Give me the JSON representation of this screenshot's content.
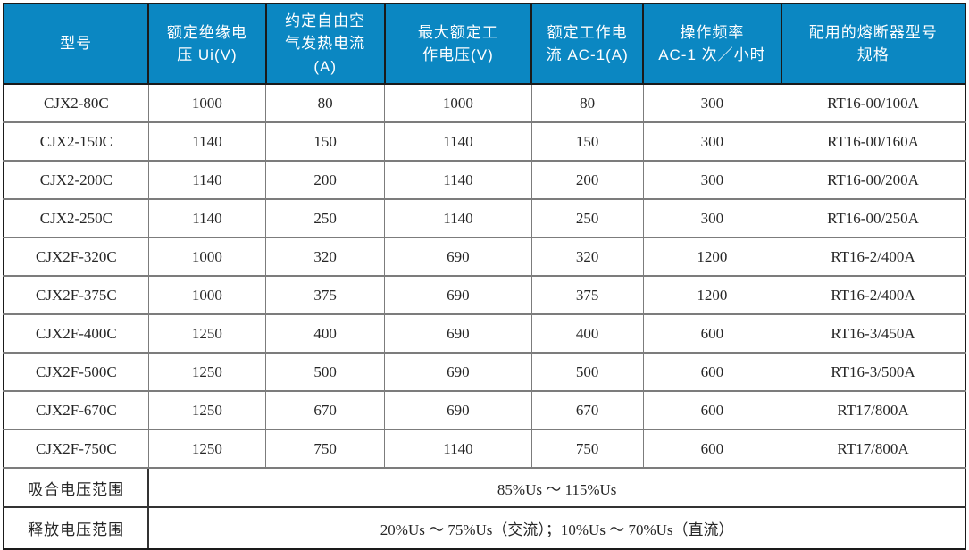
{
  "chart_data": {
    "type": "table",
    "columns": [
      "型号",
      "额定绝缘电压 Ui(V)",
      "约定自由空气发热电流(A)",
      "最大额定工作电压(V)",
      "额定工作电流 AC-1(A)",
      "操作频率 AC-1 次／小时",
      "配用的熔断器型号规格"
    ],
    "rows": [
      [
        "CJX2-80C",
        "1000",
        "80",
        "1000",
        "80",
        "300",
        "RT16-00/100A"
      ],
      [
        "CJX2-150C",
        "1140",
        "150",
        "1140",
        "150",
        "300",
        "RT16-00/160A"
      ],
      [
        "CJX2-200C",
        "1140",
        "200",
        "1140",
        "200",
        "300",
        "RT16-00/200A"
      ],
      [
        "CJX2-250C",
        "1140",
        "250",
        "1140",
        "250",
        "300",
        "RT16-00/250A"
      ],
      [
        "CJX2F-320C",
        "1000",
        "320",
        "690",
        "320",
        "1200",
        "RT16-2/400A"
      ],
      [
        "CJX2F-375C",
        "1000",
        "375",
        "690",
        "375",
        "1200",
        "RT16-2/400A"
      ],
      [
        "CJX2F-400C",
        "1250",
        "400",
        "690",
        "400",
        "600",
        "RT16-3/450A"
      ],
      [
        "CJX2F-500C",
        "1250",
        "500",
        "690",
        "500",
        "600",
        "RT16-3/500A"
      ],
      [
        "CJX2F-670C",
        "1250",
        "670",
        "690",
        "670",
        "600",
        "RT17/800A"
      ],
      [
        "CJX2F-750C",
        "1250",
        "750",
        "1140",
        "750",
        "600",
        "RT17/800A"
      ]
    ],
    "footer_rows": [
      {
        "label": "吸合电压范围",
        "value": "85%Us ～ 115%Us"
      },
      {
        "label": "释放电压范围",
        "value": "20%Us ～ 75%Us（交流）；10%Us ～ 70%Us（直流）"
      }
    ]
  },
  "header_display": [
    "型号",
    "额定绝缘电\n压 Ui(V)",
    "约定自由空\n气发热电流\n(A)",
    "最大额定工\n作电压(V)",
    "额定工作电\n流 AC-1(A)",
    "操作频率\nAC-1 次／小时",
    "配用的熔断器型号\n规格"
  ],
  "colors": {
    "header_bg": "#0b87c2",
    "header_text": "#ffffff",
    "outer_border": "#1a1a1a",
    "grid_line": "#7c7c7c",
    "body_text": "#262626"
  }
}
